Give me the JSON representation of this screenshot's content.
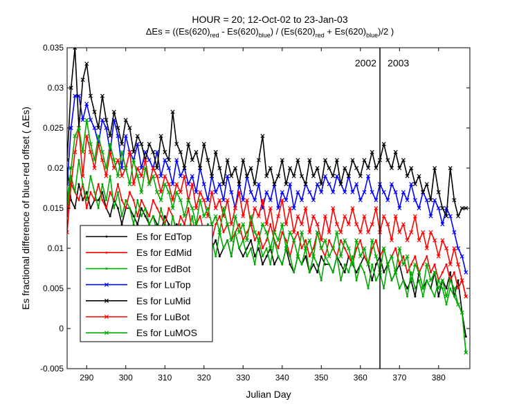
{
  "chart_data": {
    "type": "line",
    "title_line1": "HOUR = 20; 12-Oct-02 to 23-Jan-03",
    "title_line2": {
      "p1": "ΔEs = ((Es(620)",
      "s1": "red",
      "p2": " - Es(620)",
      "s2": "blue",
      "p3": ") / (Es(620)",
      "s3": "red",
      "p4": " + Es(620)",
      "s4": "blue",
      "p5": ")/2  )"
    },
    "xlabel": "Julian Day",
    "ylabel": "Es fractional difference of blue-red offset ( ΔEs)",
    "xlim": [
      285,
      388
    ],
    "ylim": [
      -0.005,
      0.035
    ],
    "xticks": [
      290,
      300,
      310,
      320,
      330,
      340,
      350,
      360,
      370,
      380
    ],
    "yticks": [
      -0.005,
      0,
      0.005,
      0.01,
      0.015,
      0.02,
      0.025,
      0.03,
      0.035
    ],
    "ytick_labels": [
      "-0.005",
      "0",
      "0.005",
      "0.01",
      "0.015",
      "0.02",
      "0.025",
      "0.03",
      "0.035"
    ],
    "grid": false,
    "vline": {
      "x": 365,
      "left_label": "2002",
      "right_label": "2003"
    },
    "legend_position": "lower-left",
    "x_start": 285,
    "series": [
      {
        "name": "Es for EdTop",
        "color": "#000000",
        "marker": "dot",
        "values": [
          0.02,
          0.016,
          0.015,
          0.018,
          0.016,
          0.017,
          0.015,
          0.016,
          0.016,
          0.017,
          0.015,
          0.014,
          0.016,
          0.015,
          0.013,
          0.015,
          0.015,
          0.014,
          0.013,
          0.015,
          0.014,
          0.013,
          0.014,
          0.013,
          0.012,
          0.014,
          0.013,
          0.012,
          0.013,
          0.012,
          0.011,
          0.012,
          0.011,
          0.01,
          0.012,
          0.011,
          0.013,
          0.01,
          0.011,
          0.009,
          0.01,
          0.011,
          0.009,
          0.012,
          0.01,
          0.009,
          0.01,
          0.011,
          0.009,
          0.01,
          0.008,
          0.009,
          0.01,
          0.008,
          0.009,
          0.008,
          0.01,
          0.008,
          0.007,
          0.009,
          0.008,
          0.009,
          0.007,
          0.008,
          0.007,
          0.009,
          0.008,
          0.008,
          0.007,
          0.009,
          0.008,
          0.007,
          0.009,
          0.008,
          0.007,
          0.008,
          0.009,
          0.008,
          0.006,
          0.008,
          0.009,
          0.007,
          0.008,
          0.006,
          0.007,
          0.008,
          0.006,
          0.005,
          0.006,
          0.004,
          0.007,
          0.005,
          0.006,
          0.005,
          0.007,
          0.004,
          0.006,
          0.005,
          0.007,
          0.004,
          0.006,
          0.002,
          -0.001
        ]
      },
      {
        "name": "Es for EdMid",
        "color": "#ff0000",
        "marker": "dot",
        "values": [
          0.014,
          0.018,
          0.017,
          0.016,
          0.018,
          0.015,
          0.017,
          0.016,
          0.018,
          0.016,
          0.015,
          0.017,
          0.016,
          0.018,
          0.016,
          0.015,
          0.017,
          0.016,
          0.014,
          0.016,
          0.015,
          0.014,
          0.016,
          0.015,
          0.014,
          0.013,
          0.015,
          0.014,
          0.012,
          0.014,
          0.013,
          0.015,
          0.012,
          0.013,
          0.014,
          0.012,
          0.013,
          0.011,
          0.013,
          0.014,
          0.012,
          0.013,
          0.011,
          0.012,
          0.013,
          0.011,
          0.012,
          0.013,
          0.011,
          0.012,
          0.01,
          0.011,
          0.013,
          0.011,
          0.01,
          0.012,
          0.011,
          0.009,
          0.011,
          0.012,
          0.01,
          0.011,
          0.009,
          0.01,
          0.012,
          0.01,
          0.009,
          0.011,
          0.01,
          0.009,
          0.011,
          0.01,
          0.009,
          0.008,
          0.01,
          0.011,
          0.009,
          0.008,
          0.01,
          0.011,
          0.009,
          0.01,
          0.008,
          0.009,
          0.01,
          0.008,
          0.009,
          0.007,
          0.008,
          0.009,
          0.007,
          0.008,
          0.009,
          0.007,
          0.008,
          0.006,
          0.007,
          0.008,
          0.006,
          0.007,
          0.005,
          0.006,
          0.004
        ]
      },
      {
        "name": "Es for EdBot",
        "color": "#00aa00",
        "marker": "dot",
        "values": [
          0.015,
          0.019,
          0.017,
          0.021,
          0.018,
          0.016,
          0.019,
          0.017,
          0.015,
          0.018,
          0.016,
          0.019,
          0.015,
          0.017,
          0.014,
          0.016,
          0.015,
          0.013,
          0.016,
          0.014,
          0.015,
          0.013,
          0.014,
          0.012,
          0.015,
          0.013,
          0.011,
          0.014,
          0.012,
          0.013,
          0.011,
          0.012,
          0.014,
          0.011,
          0.012,
          0.01,
          0.013,
          0.011,
          0.009,
          0.012,
          0.01,
          0.011,
          0.009,
          0.012,
          0.01,
          0.011,
          0.009,
          0.01,
          0.008,
          0.011,
          0.009,
          0.01,
          0.008,
          0.011,
          0.009,
          0.008,
          0.01,
          0.009,
          0.007,
          0.009,
          0.008,
          0.01,
          0.007,
          0.009,
          0.008,
          0.006,
          0.009,
          0.008,
          0.007,
          0.009,
          0.006,
          0.008,
          0.007,
          0.009,
          0.006,
          0.008,
          0.007,
          0.005,
          0.008,
          0.006,
          0.007,
          0.005,
          0.008,
          0.006,
          0.007,
          0.005,
          0.006,
          0.004,
          0.007,
          0.005,
          0.006,
          0.004,
          0.006,
          0.005,
          0.004,
          0.006,
          0.005,
          0.003,
          0.005,
          0.004,
          0.003,
          0.002,
          -0.003
        ]
      },
      {
        "name": "Es for LuTop",
        "color": "#0000ff",
        "marker": "x",
        "values": [
          0.018,
          0.025,
          0.029,
          0.029,
          0.026,
          0.028,
          0.026,
          0.025,
          0.023,
          0.026,
          0.025,
          0.022,
          0.026,
          0.024,
          0.02,
          0.024,
          0.022,
          0.021,
          0.023,
          0.02,
          0.022,
          0.021,
          0.02,
          0.022,
          0.019,
          0.021,
          0.02,
          0.018,
          0.021,
          0.019,
          0.02,
          0.018,
          0.019,
          0.017,
          0.02,
          0.018,
          0.016,
          0.019,
          0.017,
          0.018,
          0.016,
          0.019,
          0.017,
          0.015,
          0.018,
          0.016,
          0.019,
          0.017,
          0.016,
          0.018,
          0.015,
          0.017,
          0.016,
          0.018,
          0.015,
          0.017,
          0.016,
          0.018,
          0.015,
          0.017,
          0.016,
          0.018,
          0.017,
          0.016,
          0.018,
          0.017,
          0.019,
          0.018,
          0.017,
          0.019,
          0.018,
          0.017,
          0.019,
          0.017,
          0.018,
          0.016,
          0.017,
          0.019,
          0.017,
          0.016,
          0.018,
          0.017,
          0.016,
          0.018,
          0.017,
          0.015,
          0.017,
          0.016,
          0.018,
          0.016,
          0.015,
          0.017,
          0.016,
          0.014,
          0.016,
          0.015,
          0.013,
          0.015,
          0.014,
          0.012,
          0.01,
          0.009,
          0.007
        ]
      },
      {
        "name": "Es for LuMid",
        "color": "#000000",
        "marker": "x",
        "values": [
          0.021,
          0.03,
          0.035,
          0.025,
          0.031,
          0.033,
          0.029,
          0.027,
          0.025,
          0.029,
          0.026,
          0.024,
          0.027,
          0.025,
          0.023,
          0.026,
          0.025,
          0.022,
          0.024,
          0.023,
          0.021,
          0.023,
          0.022,
          0.02,
          0.024,
          0.022,
          0.021,
          0.027,
          0.023,
          0.022,
          0.02,
          0.023,
          0.021,
          0.022,
          0.02,
          0.023,
          0.021,
          0.019,
          0.022,
          0.02,
          0.018,
          0.021,
          0.019,
          0.02,
          0.018,
          0.021,
          0.019,
          0.02,
          0.018,
          0.021,
          0.024,
          0.019,
          0.02,
          0.018,
          0.019,
          0.021,
          0.018,
          0.02,
          0.019,
          0.021,
          0.019,
          0.018,
          0.021,
          0.019,
          0.02,
          0.018,
          0.021,
          0.02,
          0.019,
          0.021,
          0.018,
          0.02,
          0.019,
          0.021,
          0.02,
          0.019,
          0.021,
          0.02,
          0.022,
          0.02,
          0.021,
          0.023,
          0.021,
          0.02,
          0.022,
          0.02,
          0.021,
          0.019,
          0.02,
          0.018,
          0.019,
          0.017,
          0.018,
          0.016,
          0.02,
          0.017,
          0.015,
          0.014,
          0.02,
          0.016,
          0.014,
          0.015,
          0.015
        ]
      },
      {
        "name": "Es for LuBot",
        "color": "#ff0000",
        "marker": "x",
        "values": [
          0.012,
          0.018,
          0.022,
          0.025,
          0.019,
          0.024,
          0.022,
          0.02,
          0.023,
          0.021,
          0.019,
          0.022,
          0.02,
          0.021,
          0.019,
          0.02,
          0.022,
          0.018,
          0.02,
          0.019,
          0.021,
          0.018,
          0.02,
          0.019,
          0.017,
          0.019,
          0.018,
          0.016,
          0.018,
          0.017,
          0.019,
          0.016,
          0.018,
          0.015,
          0.017,
          0.016,
          0.014,
          0.017,
          0.015,
          0.016,
          0.014,
          0.016,
          0.013,
          0.015,
          0.017,
          0.014,
          0.016,
          0.013,
          0.015,
          0.014,
          0.016,
          0.013,
          0.015,
          0.012,
          0.014,
          0.016,
          0.013,
          0.015,
          0.012,
          0.014,
          0.013,
          0.015,
          0.012,
          0.014,
          0.013,
          0.011,
          0.014,
          0.012,
          0.015,
          0.013,
          0.012,
          0.014,
          0.013,
          0.015,
          0.013,
          0.012,
          0.014,
          0.012,
          0.013,
          0.015,
          0.012,
          0.014,
          0.013,
          0.011,
          0.014,
          0.012,
          0.013,
          0.011,
          0.012,
          0.014,
          0.011,
          0.012,
          0.01,
          0.012,
          0.011,
          0.009,
          0.011,
          0.01,
          0.008,
          0.01,
          0.008,
          0.006,
          0.004
        ]
      },
      {
        "name": "Es for LuMOS",
        "color": "#00aa00",
        "marker": "x",
        "values": [
          0.016,
          0.02,
          0.024,
          0.025,
          0.022,
          0.026,
          0.023,
          0.021,
          0.024,
          0.022,
          0.02,
          0.023,
          0.021,
          0.019,
          0.022,
          0.02,
          0.018,
          0.021,
          0.019,
          0.017,
          0.02,
          0.018,
          0.019,
          0.017,
          0.016,
          0.018,
          0.017,
          0.015,
          0.017,
          0.016,
          0.014,
          0.016,
          0.015,
          0.013,
          0.016,
          0.014,
          0.015,
          0.013,
          0.014,
          0.012,
          0.015,
          0.013,
          0.011,
          0.014,
          0.012,
          0.013,
          0.011,
          0.014,
          0.012,
          0.011,
          0.013,
          0.012,
          0.01,
          0.012,
          0.011,
          0.013,
          0.01,
          0.012,
          0.011,
          0.009,
          0.012,
          0.01,
          0.011,
          0.009,
          0.012,
          0.01,
          0.011,
          0.009,
          0.01,
          0.012,
          0.009,
          0.011,
          0.01,
          0.008,
          0.011,
          0.009,
          0.01,
          0.008,
          0.011,
          0.009,
          0.007,
          0.01,
          0.008,
          0.009,
          0.007,
          0.01,
          0.008,
          0.009,
          0.006,
          0.008,
          0.007,
          0.005,
          0.008,
          0.006,
          0.007,
          0.005,
          0.006,
          0.004,
          0.006,
          0.005,
          0.003,
          0.002,
          -0.003
        ]
      }
    ]
  }
}
